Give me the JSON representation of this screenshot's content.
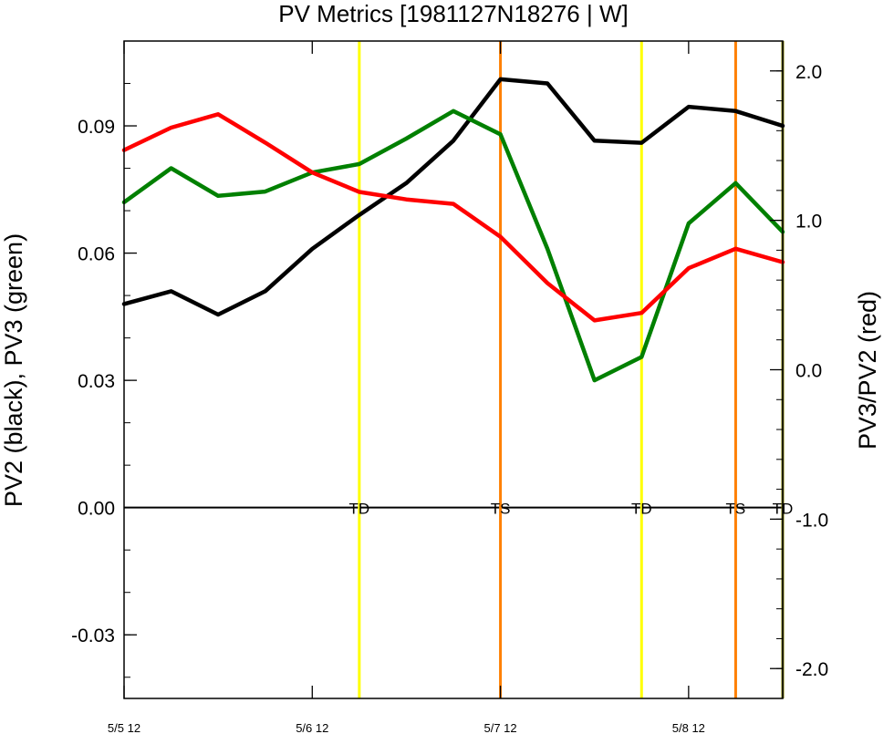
{
  "chart_data": {
    "type": "line",
    "title": "PV Metrics [1981127N18276 | W]",
    "ylabel_left": "PV2 (black), PV3 (green)",
    "ylabel_right": "PV3/PV2 (red)",
    "x_tick_labels": [
      "5/5 12",
      "5/6 12",
      "5/7 12",
      "5/8 12"
    ],
    "ylim_left": [
      -0.045,
      0.11
    ],
    "ylim_right": [
      -2.2,
      2.2
    ],
    "y_ticks_left": [
      "0.09",
      "0.06",
      "0.03",
      "0.00",
      "-0.03"
    ],
    "y_ticks_right": [
      "2.0",
      "1.0",
      "0.0",
      "-1.0",
      "-2.0"
    ],
    "x": [
      0,
      0.25,
      0.5,
      0.75,
      1.0,
      1.25,
      1.5,
      1.75,
      2.0,
      2.25,
      2.5,
      2.75,
      3.0,
      3.25,
      3.5
    ],
    "series": [
      {
        "color": "#000000",
        "axis": "left",
        "values": [
          0.048,
          0.051,
          0.0455,
          0.051,
          0.061,
          0.069,
          0.0765,
          0.0865,
          0.101,
          0.1,
          0.0865,
          0.086,
          0.0945,
          0.0935,
          0.09
        ]
      },
      {
        "color": "#008000",
        "axis": "left",
        "values": [
          0.072,
          0.08,
          0.0735,
          0.0745,
          0.079,
          0.081,
          0.087,
          0.0935,
          0.088,
          0.061,
          0.03,
          0.0355,
          0.067,
          0.0765,
          0.065
        ]
      },
      {
        "color": "#ff0000",
        "axis": "right",
        "values": [
          1.47,
          1.62,
          1.71,
          1.52,
          1.32,
          1.19,
          1.14,
          1.11,
          0.89,
          0.58,
          0.33,
          0.38,
          0.68,
          0.81,
          0.72
        ]
      }
    ],
    "stage_markers": [
      {
        "x": 1.25,
        "label": "TD",
        "color": "#ffff00"
      },
      {
        "x": 2.0,
        "label": "TS",
        "color": "#ff8000"
      },
      {
        "x": 2.75,
        "label": "TD",
        "color": "#ffff00"
      },
      {
        "x": 3.25,
        "label": "TS",
        "color": "#ff8000"
      },
      {
        "x": 3.5,
        "label": "TD",
        "color": "#808000"
      }
    ]
  }
}
